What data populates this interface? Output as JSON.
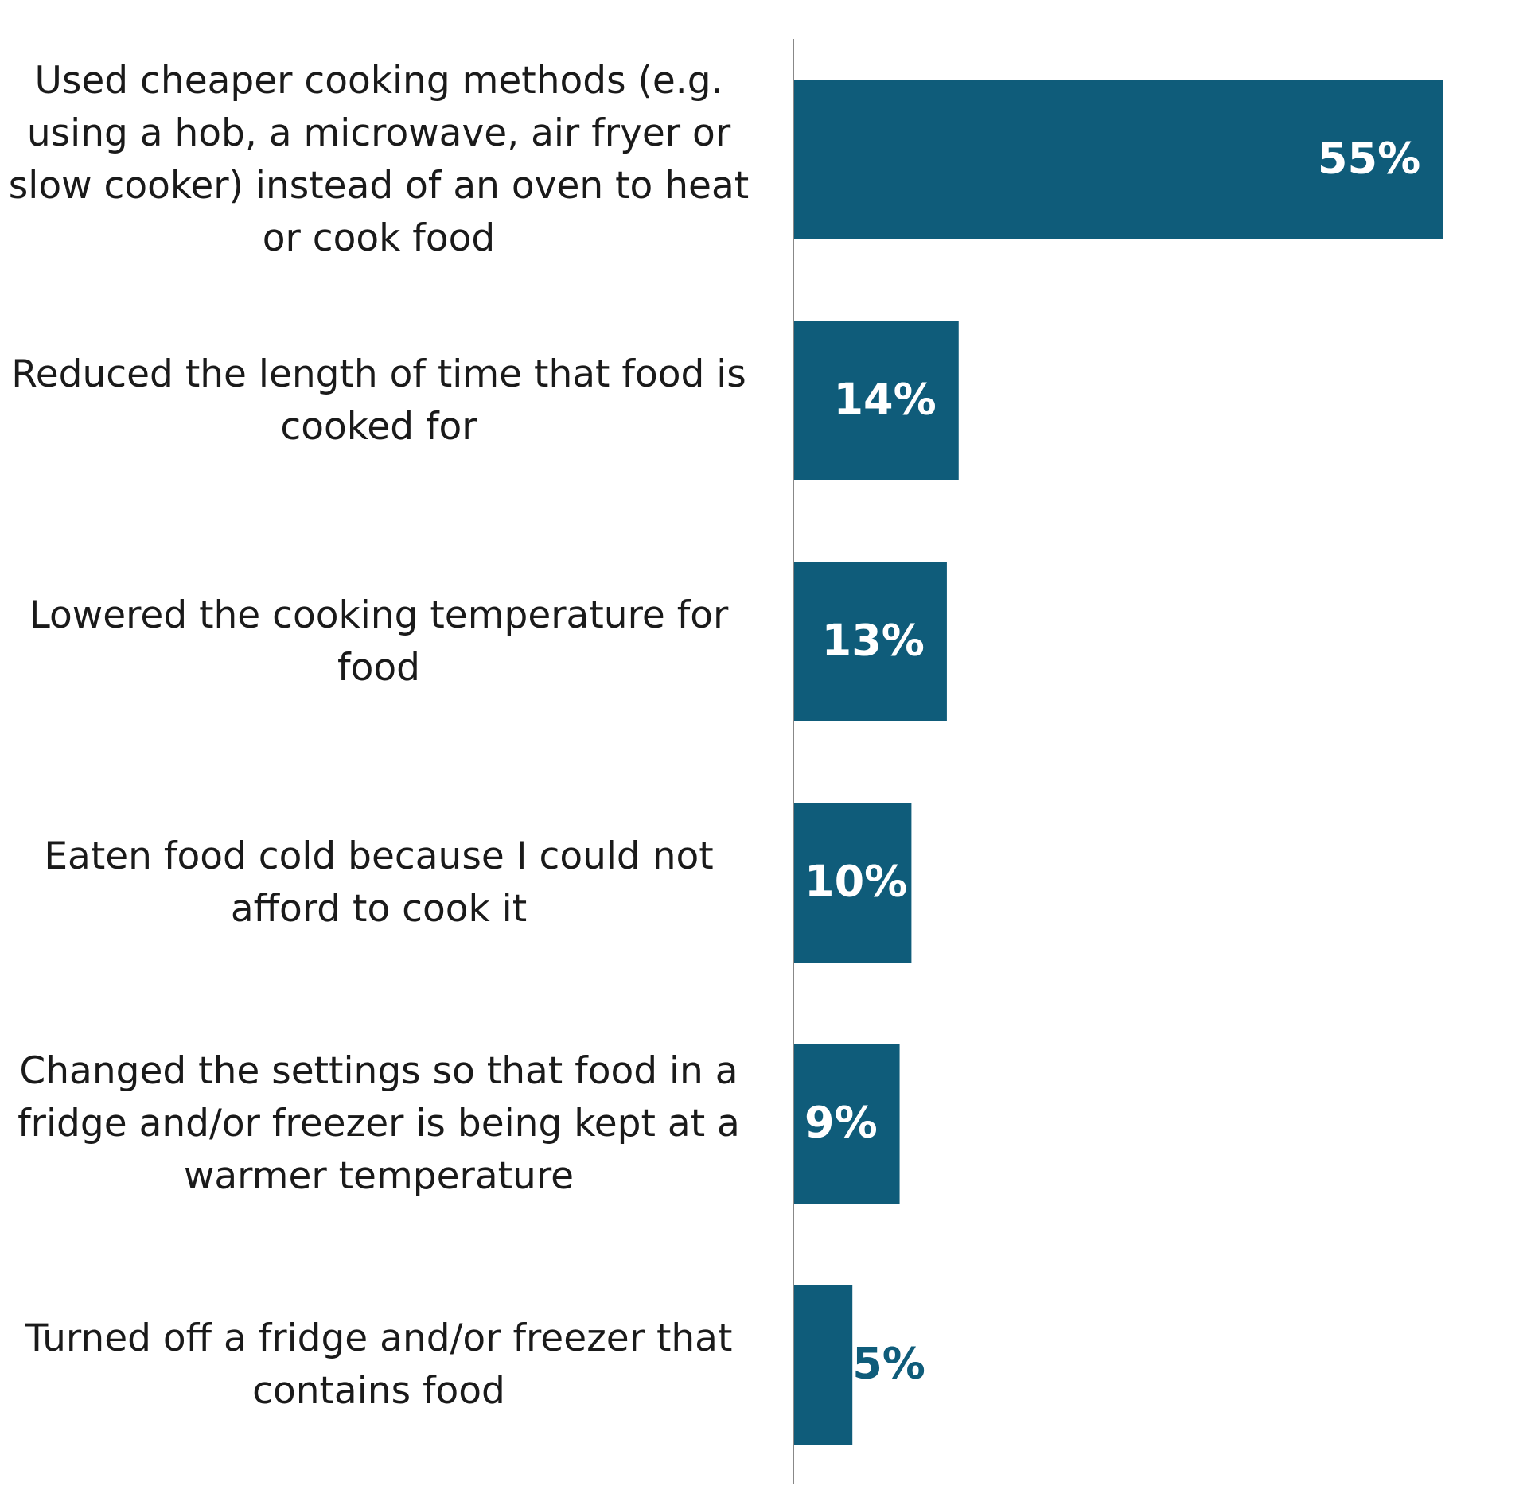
{
  "chart_data": {
    "type": "bar",
    "orientation": "horizontal",
    "categories": [
      "Used cheaper cooking methods (e.g. using a hob, a microwave, air fryer or slow cooker) instead of an oven to heat or cook food",
      "Reduced the length of time that food is cooked for",
      "Lowered the cooking temperature for food",
      "Eaten food cold because I could not afford to cook it",
      "Changed the settings so that food in a fridge and/or freezer is being kept at a warmer temperature",
      "Turned off a fridge and/or freezer that contains food"
    ],
    "values": [
      55,
      14,
      13,
      10,
      9,
      5
    ],
    "value_labels": [
      "55%",
      "14%",
      "13%",
      "10%",
      "9%",
      "5%"
    ],
    "color": "#0f5c7a",
    "xlim": [
      0,
      60
    ]
  }
}
